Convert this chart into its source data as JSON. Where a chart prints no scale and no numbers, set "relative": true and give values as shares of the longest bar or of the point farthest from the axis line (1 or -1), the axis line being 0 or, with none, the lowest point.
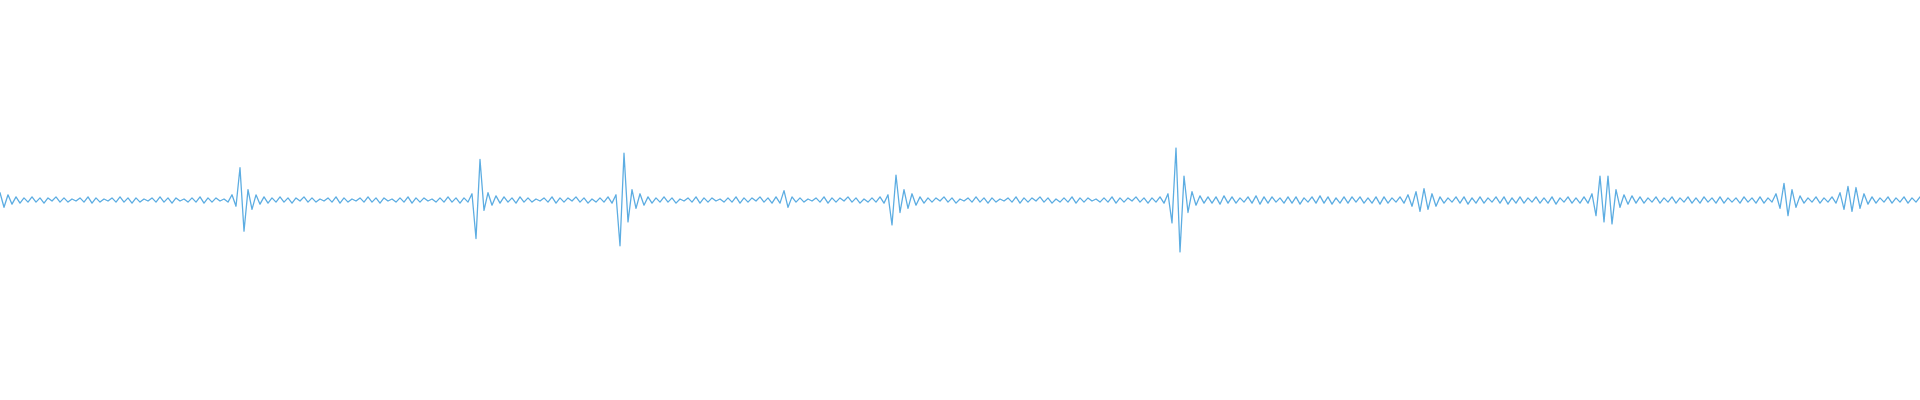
{
  "chart_data": {
    "type": "line",
    "relative": true,
    "color": "#5dade2",
    "marker": "none",
    "categories": [
      null,
      null,
      null,
      null,
      null,
      null,
      null,
      null,
      null,
      null,
      null,
      null,
      null,
      null,
      null,
      null,
      null,
      null,
      null,
      null,
      null,
      null,
      null,
      null,
      null,
      null,
      null,
      null,
      null,
      null,
      null,
      null,
      null,
      null,
      null,
      null,
      null,
      null,
      null,
      null,
      null,
      null,
      null,
      null,
      null,
      null,
      null,
      null,
      null,
      null,
      null,
      null,
      null,
      null,
      null,
      null,
      null,
      null,
      null,
      null,
      null,
      null,
      null,
      null,
      null,
      null,
      null,
      null,
      null,
      null,
      null,
      null,
      null,
      null,
      null,
      null,
      null,
      null,
      null,
      null,
      null,
      null,
      null,
      null,
      null,
      null,
      null,
      null,
      null,
      null,
      null,
      null,
      null,
      null,
      null,
      null,
      null,
      null,
      null,
      null,
      null,
      null,
      null,
      null,
      null,
      null,
      null,
      null,
      null,
      null,
      null,
      null,
      null,
      null,
      null,
      null,
      null,
      null,
      null,
      null,
      null,
      null,
      null,
      null,
      null,
      null,
      null,
      null,
      null,
      null,
      null,
      null,
      null,
      null,
      null,
      null,
      null,
      null,
      null,
      null,
      null,
      null,
      null,
      null,
      null,
      null,
      null,
      null,
      null,
      null,
      null,
      null,
      null,
      null,
      null,
      null,
      null,
      null,
      null,
      null,
      null,
      null,
      null,
      null,
      null,
      null,
      null,
      null,
      null,
      null,
      null,
      null,
      null,
      null,
      null,
      null,
      null,
      null,
      null,
      null,
      null,
      null,
      null,
      null,
      null,
      null,
      null,
      null,
      null,
      null,
      null,
      null,
      null,
      null,
      null,
      null,
      null,
      null,
      null,
      null,
      null,
      null,
      null,
      null,
      null,
      null,
      null,
      null,
      null,
      null,
      null,
      null,
      null,
      null,
      null,
      null,
      null,
      null,
      null,
      null,
      null,
      null,
      null,
      null,
      null,
      null,
      null,
      null,
      null,
      null,
      null,
      null,
      null,
      null,
      null,
      null,
      null,
      null,
      null,
      null,
      null,
      null,
      null,
      null,
      null,
      null,
      null,
      null,
      null,
      null,
      null,
      null,
      null,
      null,
      null,
      null,
      null,
      null,
      null,
      null,
      null,
      null,
      null,
      null,
      null,
      null,
      null,
      null,
      null,
      null,
      null,
      null,
      null,
      null,
      null,
      null,
      null,
      null,
      null,
      null,
      null,
      null,
      null,
      null,
      null,
      null,
      null,
      null,
      null,
      null,
      null,
      null,
      null,
      null,
      null,
      null,
      null,
      null,
      null,
      null,
      null,
      null,
      null,
      null,
      null,
      null,
      null,
      null,
      null,
      null,
      null,
      null,
      null,
      null,
      null,
      null,
      null,
      null,
      null,
      null,
      null,
      null,
      null,
      null,
      null,
      null,
      null,
      null,
      null,
      null,
      null,
      null,
      null,
      null,
      null,
      null,
      null,
      null,
      null,
      null,
      null,
      null,
      null,
      null,
      null,
      null,
      null,
      null,
      null,
      null,
      null,
      null,
      null,
      null,
      null,
      null,
      null,
      null,
      null,
      null,
      null,
      null,
      null,
      null,
      null,
      null,
      null,
      null,
      null,
      null,
      null,
      null,
      null,
      null,
      null,
      null,
      null,
      null,
      null,
      null,
      null,
      null,
      null,
      null,
      null,
      null,
      null,
      null,
      null,
      null,
      null,
      null,
      null,
      null,
      null,
      null,
      null,
      null,
      null,
      null,
      null,
      null,
      null,
      null,
      null,
      null,
      null,
      null,
      null,
      null,
      null,
      null,
      null,
      null,
      null,
      null,
      null,
      null,
      null,
      null,
      null,
      null,
      null,
      null,
      null,
      null,
      null,
      null,
      null,
      null,
      null,
      null,
      null,
      null,
      null,
      null,
      null,
      null,
      null,
      null,
      null,
      null,
      null,
      null,
      null,
      null,
      null,
      null,
      null,
      null,
      null,
      null,
      null,
      null,
      null,
      null,
      null,
      null,
      null,
      null,
      null,
      null,
      null,
      null,
      null,
      null,
      null,
      null,
      null,
      null,
      null,
      null,
      null,
      null,
      null,
      null,
      null,
      null,
      null,
      null,
      null
    ],
    "values": [
      0.57,
      0.43,
      0.55,
      0.46,
      0.53,
      0.47,
      0.52,
      0.48,
      0.53,
      0.48,
      0.52,
      0.47,
      0.52,
      0.49,
      0.53,
      0.48,
      0.52,
      0.48,
      0.51,
      0.49,
      0.52,
      0.48,
      0.53,
      0.47,
      0.52,
      0.48,
      0.51,
      0.49,
      0.52,
      0.48,
      0.53,
      0.48,
      0.52,
      0.47,
      0.52,
      0.48,
      0.51,
      0.49,
      0.52,
      0.48,
      0.53,
      0.48,
      0.52,
      0.47,
      0.52,
      0.49,
      0.51,
      0.48,
      0.52,
      0.48,
      0.53,
      0.47,
      0.52,
      0.48,
      0.52,
      0.49,
      0.51,
      0.48,
      0.55,
      0.44,
      0.81,
      0.2,
      0.6,
      0.41,
      0.55,
      0.46,
      0.53,
      0.47,
      0.52,
      0.48,
      0.53,
      0.48,
      0.52,
      0.47,
      0.52,
      0.49,
      0.53,
      0.48,
      0.52,
      0.48,
      0.51,
      0.49,
      0.52,
      0.48,
      0.53,
      0.47,
      0.52,
      0.48,
      0.51,
      0.49,
      0.52,
      0.48,
      0.53,
      0.48,
      0.52,
      0.47,
      0.52,
      0.49,
      0.51,
      0.48,
      0.52,
      0.48,
      0.53,
      0.47,
      0.52,
      0.48,
      0.52,
      0.49,
      0.51,
      0.48,
      0.52,
      0.48,
      0.53,
      0.48,
      0.52,
      0.47,
      0.52,
      0.48,
      0.56,
      0.13,
      0.89,
      0.4,
      0.57,
      0.45,
      0.54,
      0.47,
      0.53,
      0.48,
      0.52,
      0.47,
      0.53,
      0.48,
      0.52,
      0.48,
      0.51,
      0.49,
      0.52,
      0.48,
      0.53,
      0.47,
      0.52,
      0.48,
      0.52,
      0.49,
      0.53,
      0.48,
      0.52,
      0.47,
      0.51,
      0.48,
      0.52,
      0.48,
      0.53,
      0.47,
      0.55,
      0.06,
      0.95,
      0.29,
      0.6,
      0.42,
      0.56,
      0.45,
      0.53,
      0.47,
      0.52,
      0.48,
      0.53,
      0.48,
      0.52,
      0.47,
      0.51,
      0.49,
      0.52,
      0.48,
      0.53,
      0.47,
      0.52,
      0.48,
      0.52,
      0.49,
      0.51,
      0.48,
      0.52,
      0.48,
      0.53,
      0.47,
      0.52,
      0.48,
      0.52,
      0.49,
      0.53,
      0.48,
      0.52,
      0.47,
      0.53,
      0.47,
      0.59,
      0.43,
      0.53,
      0.48,
      0.52,
      0.48,
      0.51,
      0.49,
      0.52,
      0.48,
      0.53,
      0.47,
      0.52,
      0.48,
      0.52,
      0.49,
      0.53,
      0.48,
      0.52,
      0.47,
      0.51,
      0.48,
      0.52,
      0.48,
      0.53,
      0.47,
      0.55,
      0.26,
      0.74,
      0.38,
      0.6,
      0.42,
      0.56,
      0.45,
      0.53,
      0.47,
      0.52,
      0.48,
      0.52,
      0.49,
      0.53,
      0.48,
      0.52,
      0.47,
      0.51,
      0.49,
      0.52,
      0.48,
      0.53,
      0.48,
      0.52,
      0.47,
      0.52,
      0.48,
      0.51,
      0.49,
      0.52,
      0.48,
      0.53,
      0.47,
      0.52,
      0.48,
      0.52,
      0.49,
      0.53,
      0.48,
      0.52,
      0.47,
      0.51,
      0.48,
      0.52,
      0.48,
      0.53,
      0.47,
      0.52,
      0.48,
      0.52,
      0.49,
      0.51,
      0.48,
      0.52,
      0.48,
      0.53,
      0.47,
      0.52,
      0.48,
      0.52,
      0.49,
      0.53,
      0.48,
      0.52,
      0.47,
      0.52,
      0.48,
      0.53,
      0.47,
      0.56,
      0.28,
      1,
      0,
      0.73,
      0.38,
      0.58,
      0.45,
      0.54,
      0.47,
      0.53,
      0.47,
      0.53,
      0.46,
      0.54,
      0.47,
      0.53,
      0.47,
      0.52,
      0.48,
      0.53,
      0.47,
      0.54,
      0.46,
      0.53,
      0.47,
      0.53,
      0.48,
      0.52,
      0.47,
      0.53,
      0.47,
      0.53,
      0.46,
      0.52,
      0.48,
      0.53,
      0.47,
      0.54,
      0.47,
      0.53,
      0.46,
      0.52,
      0.47,
      0.53,
      0.47,
      0.53,
      0.48,
      0.53,
      0.47,
      0.52,
      0.47,
      0.53,
      0.46,
      0.53,
      0.47,
      0.52,
      0.48,
      0.53,
      0.47,
      0.55,
      0.44,
      0.58,
      0.39,
      0.61,
      0.41,
      0.56,
      0.44,
      0.53,
      0.47,
      0.52,
      0.48,
      0.53,
      0.47,
      0.53,
      0.46,
      0.52,
      0.47,
      0.53,
      0.47,
      0.52,
      0.48,
      0.53,
      0.47,
      0.53,
      0.46,
      0.52,
      0.47,
      0.53,
      0.47,
      0.52,
      0.48,
      0.53,
      0.47,
      0.52,
      0.47,
      0.53,
      0.46,
      0.52,
      0.48,
      0.53,
      0.47,
      0.52,
      0.47,
      0.53,
      0.47,
      0.56,
      0.35,
      0.73,
      0.29,
      0.73,
      0.27,
      0.6,
      0.43,
      0.55,
      0.46,
      0.54,
      0.47,
      0.53,
      0.47,
      0.52,
      0.48,
      0.53,
      0.47,
      0.52,
      0.48,
      0.53,
      0.47,
      0.52,
      0.48,
      0.53,
      0.47,
      0.52,
      0.47,
      0.53,
      0.48,
      0.52,
      0.47,
      0.53,
      0.47,
      0.52,
      0.48,
      0.52,
      0.47,
      0.53,
      0.48,
      0.52,
      0.47,
      0.53,
      0.47,
      0.52,
      0.48,
      0.56,
      0.42,
      0.66,
      0.35,
      0.6,
      0.43,
      0.54,
      0.47,
      0.52,
      0.48,
      0.53,
      0.47,
      0.52,
      0.48,
      0.53,
      0.47,
      0.57,
      0.41,
      0.63,
      0.39,
      0.62,
      0.42,
      0.56,
      0.46,
      0.53,
      0.47,
      0.52,
      0.48,
      0.53,
      0.47,
      0.52,
      0.48,
      0.53,
      0.47,
      0.52,
      0.48,
      0.53
    ]
  }
}
